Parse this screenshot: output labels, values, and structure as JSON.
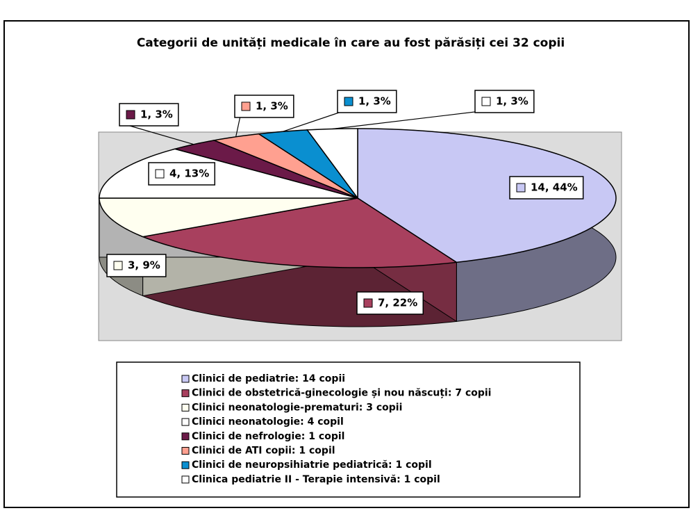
{
  "chart_data": {
    "type": "pie",
    "title": "Categorii de unități medicale în care au fost părăsiți cei 32 copii",
    "categories": [
      "Clinici de pediatrie: 14 copii",
      "Clinici de obstetrică-ginecologie și nou născuți: 7 copii",
      "Clinici neonatologie-prematuri: 3 copii",
      "Clinici neonatologie: 4 copil",
      "Clinici de nefrologie: 1 copil",
      "Clinici de ATI copii: 1 copil",
      "Clinici de neuropsihiatrie pediatrică: 1 copil",
      "Clinica pediatrie II - Terapie intensivă: 1 copil"
    ],
    "values": [
      14,
      7,
      3,
      4,
      1,
      1,
      1,
      1
    ],
    "value_labels": [
      "14, 44%",
      "7, 22%",
      "3, 9%",
      "4, 13%",
      "1, 3%",
      "1, 3%",
      "1, 3%",
      "1, 3%"
    ],
    "colors": [
      "#c8c8f4",
      "#a8405e",
      "#fffff0",
      "#ffffff",
      "#6b1a48",
      "#ffa090",
      "#0a8fd0",
      "#ffffff"
    ],
    "legend": "bottom"
  }
}
